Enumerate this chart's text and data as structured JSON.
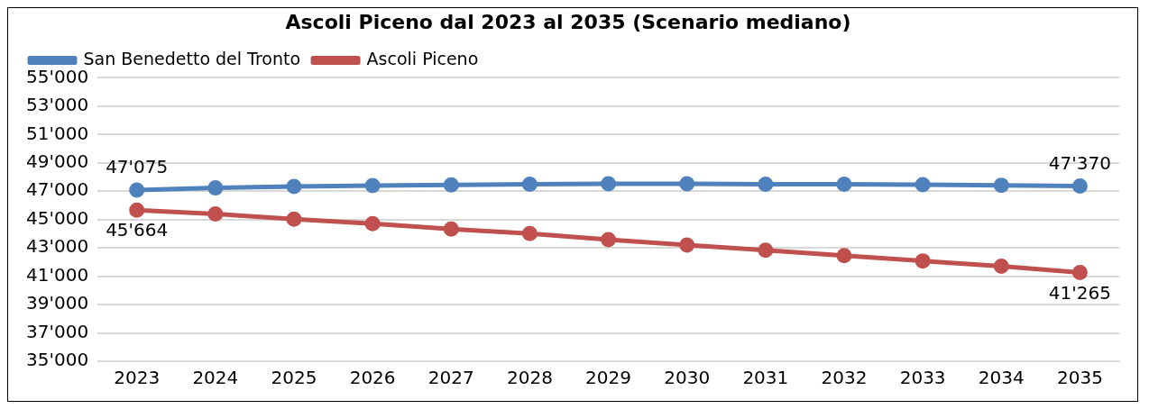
{
  "chart_data": {
    "type": "line",
    "title": "Ascoli Piceno dal 2023 al 2035 (Scenario mediano)",
    "categories": [
      "2023",
      "2024",
      "2025",
      "2026",
      "2027",
      "2028",
      "2029",
      "2030",
      "2031",
      "2032",
      "2033",
      "2034",
      "2035"
    ],
    "series": [
      {
        "name": "San Benedetto del Tronto",
        "color": "#4f81bd",
        "values": [
          47075,
          47230,
          47330,
          47390,
          47440,
          47490,
          47520,
          47520,
          47490,
          47490,
          47460,
          47420,
          47370
        ],
        "value_labels": [
          "47'075",
          null,
          null,
          null,
          null,
          null,
          null,
          null,
          null,
          null,
          null,
          null,
          "47'370"
        ]
      },
      {
        "name": "Ascoli Piceno",
        "color": "#c0504d",
        "values": [
          45664,
          45400,
          45030,
          44710,
          44330,
          44010,
          43580,
          43200,
          42830,
          42450,
          42080,
          41700,
          41265
        ],
        "value_labels": [
          "45'664",
          null,
          null,
          null,
          null,
          null,
          null,
          null,
          null,
          null,
          null,
          null,
          "41'265"
        ]
      }
    ],
    "ylim": [
      35000,
      55000
    ],
    "yticks": [
      {
        "value": 35000,
        "label": "35'000"
      },
      {
        "value": 37000,
        "label": "37'000"
      },
      {
        "value": 39000,
        "label": "39'000"
      },
      {
        "value": 41000,
        "label": "41'000"
      },
      {
        "value": 43000,
        "label": "43'000"
      },
      {
        "value": 45000,
        "label": "45'000"
      },
      {
        "value": 47000,
        "label": "47'000"
      },
      {
        "value": 49000,
        "label": "49'000"
      },
      {
        "value": 51000,
        "label": "51'000"
      },
      {
        "value": 53000,
        "label": "53'000"
      },
      {
        "value": 55000,
        "label": "55'000"
      }
    ],
    "grid": "y",
    "legend": "top left",
    "marker": "circle",
    "line_style": "solid"
  }
}
